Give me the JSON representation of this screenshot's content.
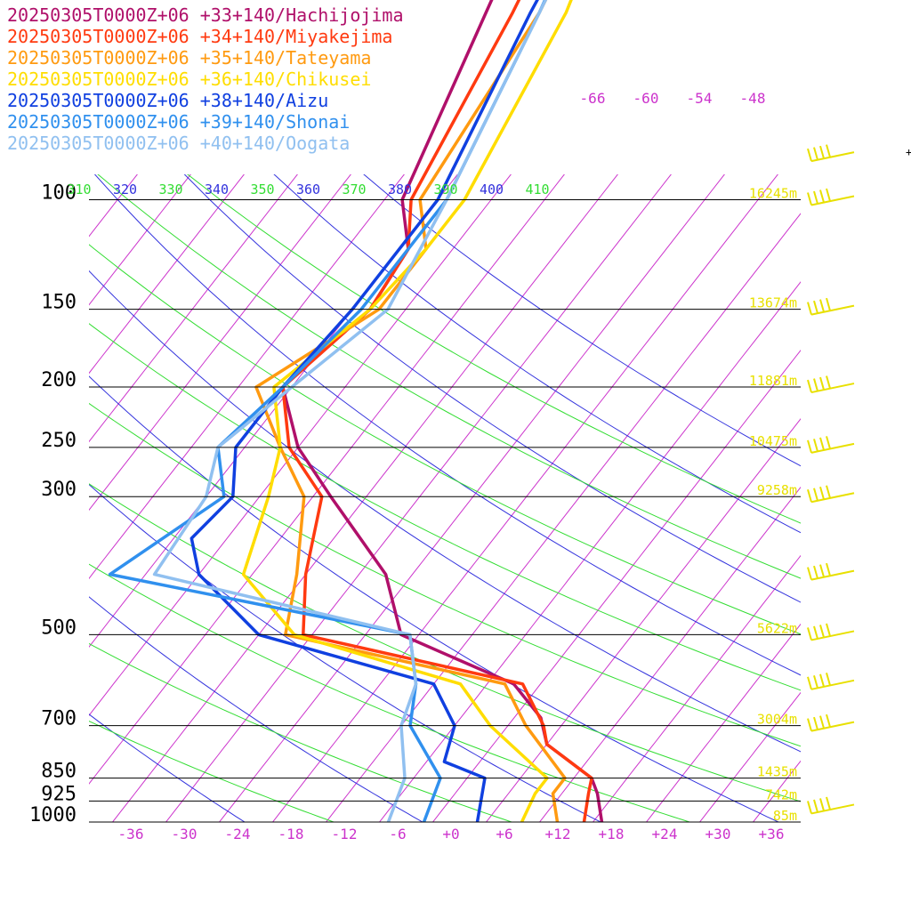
{
  "chart_data": {
    "type": "line",
    "title": "",
    "xlabel": "",
    "ylabel": "",
    "xlim": [
      -40,
      40
    ],
    "ylim": [
      1000,
      100
    ],
    "y_scale": "log",
    "grid": true,
    "legend_position": "top-left",
    "pressure_levels": [
      {
        "p": 100,
        "label": "100",
        "height": "16245m"
      },
      {
        "p": 150,
        "label": "150",
        "height": "13674m"
      },
      {
        "p": 200,
        "label": "200",
        "height": "11881m"
      },
      {
        "p": 250,
        "label": "250",
        "height": "10475m"
      },
      {
        "p": 300,
        "label": "300",
        "height": "9258m"
      },
      {
        "p": 500,
        "label": "500",
        "height": "5622m"
      },
      {
        "p": 700,
        "label": "700",
        "height": "3004m"
      },
      {
        "p": 850,
        "label": "850",
        "height": "1435m"
      },
      {
        "p": 925,
        "label": "925",
        "height": "742m"
      },
      {
        "p": 1000,
        "label": "1000",
        "height": "85m"
      }
    ],
    "x_ticks": [
      {
        "t": -36,
        "label": "-36"
      },
      {
        "t": -30,
        "label": "-30"
      },
      {
        "t": -24,
        "label": "-24"
      },
      {
        "t": -18,
        "label": "-18"
      },
      {
        "t": -12,
        "label": "-12"
      },
      {
        "t": -6,
        "label": "-6"
      },
      {
        "t": 0,
        "label": "+0"
      },
      {
        "t": 6,
        "label": "+6"
      },
      {
        "t": 12,
        "label": "+12"
      },
      {
        "t": 18,
        "label": "+18"
      },
      {
        "t": 24,
        "label": "+24"
      },
      {
        "t": 30,
        "label": "+30"
      },
      {
        "t": 36,
        "label": "+36"
      }
    ],
    "upper_isotherm_labels": [
      {
        "t": -66,
        "label": "-66"
      },
      {
        "t": -60,
        "label": "-60"
      },
      {
        "t": -54,
        "label": "-54"
      },
      {
        "t": -48,
        "label": "-48"
      }
    ],
    "theta_labels": [
      {
        "theta": 310,
        "label": "310"
      },
      {
        "theta": 320,
        "label": "320"
      },
      {
        "theta": 330,
        "label": "330"
      },
      {
        "theta": 340,
        "label": "340"
      },
      {
        "theta": 350,
        "label": "350"
      },
      {
        "theta": 360,
        "label": "360"
      },
      {
        "theta": 370,
        "label": "370"
      },
      {
        "theta": 380,
        "label": "380"
      },
      {
        "theta": 390,
        "label": "390"
      },
      {
        "theta": 400,
        "label": "400"
      },
      {
        "theta": 410,
        "label": "410"
      }
    ],
    "theta_e_labels": [
      {
        "theta": 380,
        "label": "380"
      },
      {
        "theta": 400,
        "label": "400"
      }
    ],
    "series": [
      {
        "name": "20250305T0000Z+06 +33+140/Hachijojima",
        "color": "#b0106a",
        "points": [
          [
            25,
            -74
          ],
          [
            50,
            -67
          ],
          [
            100,
            -60
          ],
          [
            120,
            -55
          ],
          [
            150,
            -54
          ],
          [
            200,
            -57
          ],
          [
            250,
            -50
          ],
          [
            300,
            -42
          ],
          [
            400,
            -29
          ],
          [
            500,
            -22
          ],
          [
            600,
            -5
          ],
          [
            680,
            1
          ],
          [
            750,
            4
          ],
          [
            850,
            12
          ],
          [
            900,
            14
          ],
          [
            1000,
            17
          ]
        ]
      },
      {
        "name": "20250305T0000Z+06 +34+140/Miyakejima",
        "color": "#ff3a10",
        "points": [
          [
            25,
            -70
          ],
          [
            50,
            -64
          ],
          [
            100,
            -59
          ],
          [
            120,
            -55
          ],
          [
            150,
            -54
          ],
          [
            200,
            -57
          ],
          [
            250,
            -51
          ],
          [
            300,
            -43
          ],
          [
            400,
            -38
          ],
          [
            500,
            -33
          ],
          [
            600,
            -4
          ],
          [
            700,
            2
          ],
          [
            750,
            4
          ],
          [
            850,
            12
          ],
          [
            900,
            13
          ],
          [
            1000,
            15
          ]
        ]
      },
      {
        "name": "20250305T0000Z+06 +35+140/Tateyama",
        "color": "#ff9a10",
        "points": [
          [
            25,
            -67
          ],
          [
            50,
            -61
          ],
          [
            100,
            -58
          ],
          [
            120,
            -53
          ],
          [
            150,
            -53
          ],
          [
            200,
            -60
          ],
          [
            250,
            -52
          ],
          [
            300,
            -45
          ],
          [
            400,
            -39
          ],
          [
            500,
            -35
          ],
          [
            600,
            -6
          ],
          [
            700,
            0
          ],
          [
            850,
            9
          ],
          [
            900,
            9
          ],
          [
            1000,
            12
          ]
        ]
      },
      {
        "name": "20250305T0000Z+06 +36+140/Chikusei",
        "color": "#ffdd00",
        "points": [
          [
            25,
            -66
          ],
          [
            50,
            -58
          ],
          [
            100,
            -53
          ],
          [
            120,
            -53
          ],
          [
            150,
            -54
          ],
          [
            200,
            -58
          ],
          [
            250,
            -52
          ],
          [
            300,
            -49
          ],
          [
            400,
            -45
          ],
          [
            500,
            -34
          ],
          [
            600,
            -11
          ],
          [
            700,
            -4
          ],
          [
            850,
            7
          ],
          [
            900,
            7
          ],
          [
            1000,
            8
          ]
        ]
      },
      {
        "name": "20250305T0000Z+06 +38+140/Aizu",
        "color": "#1040e0",
        "points": [
          [
            25,
            -67
          ],
          [
            50,
            -62
          ],
          [
            100,
            -56
          ],
          [
            150,
            -56
          ],
          [
            200,
            -57
          ],
          [
            250,
            -57
          ],
          [
            300,
            -53
          ],
          [
            350,
            -54
          ],
          [
            400,
            -50
          ],
          [
            500,
            -38
          ],
          [
            600,
            -14
          ],
          [
            700,
            -8
          ],
          [
            800,
            -6
          ],
          [
            850,
            0
          ],
          [
            1000,
            3
          ]
        ]
      },
      {
        "name": "20250305T0000Z+06 +39+140/Shonai",
        "color": "#3090ee",
        "points": [
          [
            25,
            -68
          ],
          [
            50,
            -61
          ],
          [
            100,
            -55
          ],
          [
            150,
            -55
          ],
          [
            200,
            -57
          ],
          [
            250,
            -59
          ],
          [
            300,
            -54
          ],
          [
            400,
            -60
          ],
          [
            500,
            -21
          ],
          [
            600,
            -16
          ],
          [
            700,
            -13
          ],
          [
            850,
            -5
          ],
          [
            1000,
            -3
          ]
        ]
      },
      {
        "name": "20250305T0000Z+06 +40+140/Oogata",
        "color": "#90c0f0",
        "points": [
          [
            25,
            -67
          ],
          [
            50,
            -61
          ],
          [
            100,
            -55
          ],
          [
            150,
            -52
          ],
          [
            200,
            -56
          ],
          [
            250,
            -59
          ],
          [
            300,
            -56
          ],
          [
            400,
            -55
          ],
          [
            500,
            -21
          ],
          [
            600,
            -16
          ],
          [
            700,
            -14
          ],
          [
            850,
            -9
          ],
          [
            1000,
            -7
          ]
        ]
      }
    ],
    "wind_profile": {
      "color": "#e8e000",
      "barbs": [
        {
          "p": 85,
          "label": "+"
        },
        {
          "p": 100
        },
        {
          "p": 150
        },
        {
          "p": 200
        },
        {
          "p": 250
        },
        {
          "p": 300
        },
        {
          "p": 400
        },
        {
          "p": 500
        },
        {
          "p": 600
        },
        {
          "p": 700
        },
        {
          "p": 950
        }
      ]
    }
  }
}
